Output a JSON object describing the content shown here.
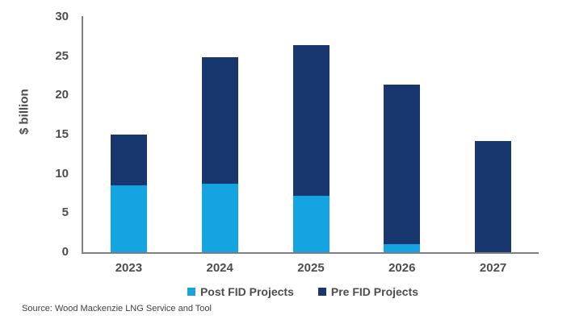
{
  "chart_data": {
    "type": "bar",
    "stacked": true,
    "title": "",
    "categories": [
      "2023",
      "2024",
      "2025",
      "2026",
      "2027"
    ],
    "series": [
      {
        "name": "Post FID Projects",
        "color": "#14A4E1",
        "values": [
          8.5,
          8.7,
          7.2,
          1.0,
          0
        ]
      },
      {
        "name": "Pre FID Projects",
        "color": "#17376E",
        "values": [
          6.5,
          16.2,
          19.2,
          20.4,
          14.2
        ]
      }
    ],
    "xlabel": "",
    "ylabel": "$ billion",
    "ylim": [
      0,
      30
    ],
    "yticks": [
      0,
      5,
      10,
      15,
      20,
      25,
      30
    ],
    "grid": false,
    "legend_position": "bottom",
    "axis_color": "#7f7f7f",
    "source": "Source: Wood Mackenzie LNG Service and Tool"
  }
}
